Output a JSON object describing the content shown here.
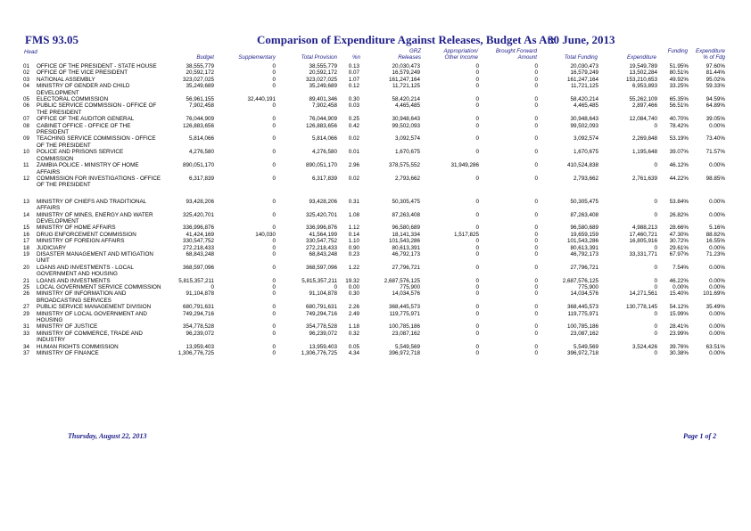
{
  "header": {
    "report_id": "FMS 93.05",
    "title": "Comparison of Expenditure Against Releases, Budget As At:",
    "as_at": "30 June, 2013"
  },
  "columns": {
    "head": "Head",
    "budget": "Budget",
    "supplementary": "Supplementary",
    "total_provision": "Total Provision",
    "pct": "%n",
    "grz_releases": "GRZ\nReleases",
    "appropriation": "Appropriation/\nOther Income",
    "brought_forward": "Brought Forward\nAmount",
    "total_funding": "Total Funding",
    "expenditure": "Expenditure",
    "funding_pct": "Funding",
    "expenditure_pct": "Expenditure\n% of Fdg"
  },
  "rows": [
    {
      "code": "01",
      "name": "OFFICE OF THE PRESIDENT - STATE HOUSE",
      "budget": "38,555,779",
      "supp": "0",
      "total": "38,555,779",
      "pct": "0.13",
      "grz": "20,030,473",
      "approp": "0",
      "bf": "0",
      "funding": "20,030,473",
      "exp": "19,549,789",
      "fpct": "51.95%",
      "epct": "97.60%"
    },
    {
      "code": "02",
      "name": "OFFICE OF THE VICE PRESIDENT",
      "budget": "20,592,172",
      "supp": "0",
      "total": "20,592,172",
      "pct": "0.07",
      "grz": "16,579,249",
      "approp": "0",
      "bf": "0",
      "funding": "16,579,249",
      "exp": "13,502,284",
      "fpct": "80.51%",
      "epct": "81.44%"
    },
    {
      "code": "03",
      "name": "NATIONAL ASSEMBLY",
      "budget": "323,027,025",
      "supp": "0",
      "total": "323,027,025",
      "pct": "1.07",
      "grz": "161,247,164",
      "approp": "0",
      "bf": "0",
      "funding": "161,247,164",
      "exp": "153,210,653",
      "fpct": "49.92%",
      "epct": "95.02%"
    },
    {
      "code": "04",
      "name": "MINISTRY OF GENDER AND CHILD DEVELOPMENT",
      "budget": "35,249,689",
      "supp": "0",
      "total": "35,249,689",
      "pct": "0.12",
      "grz": "11,721,125",
      "approp": "0",
      "bf": "0",
      "funding": "11,721,125",
      "exp": "6,953,893",
      "fpct": "33.25%",
      "epct": "59.33%"
    },
    {
      "code": "05",
      "name": "ELECTORAL COMMISSION",
      "budget": "56,961,155",
      "supp": "32,440,191",
      "total": "89,401,346",
      "pct": "0.30",
      "grz": "58,420,214",
      "approp": "0",
      "bf": "0",
      "funding": "58,420,214",
      "exp": "55,262,109",
      "fpct": "65.35%",
      "epct": "94.59%"
    },
    {
      "code": "06",
      "name": "PUBLIC SERVICE COMMISSION - OFFICE OF THE PRESIDENT",
      "budget": "7,902,458",
      "supp": "0",
      "total": "7,902,458",
      "pct": "0.03",
      "grz": "4,465,485",
      "approp": "0",
      "bf": "0",
      "funding": "4,465,485",
      "exp": "2,897,466",
      "fpct": "56.51%",
      "epct": "64.89%"
    },
    {
      "code": "07",
      "name": "OFFICE OF THE AUDITOR GENERAL",
      "budget": "76,044,909",
      "supp": "0",
      "total": "76,044,909",
      "pct": "0.25",
      "grz": "30,948,643",
      "approp": "0",
      "bf": "0",
      "funding": "30,948,643",
      "exp": "12,084,740",
      "fpct": "40.70%",
      "epct": "39.05%"
    },
    {
      "code": "08",
      "name": "CABINET OFFICE - OFFICE OF THE PRESIDENT",
      "budget": "126,883,656",
      "supp": "0",
      "total": "126,883,656",
      "pct": "0.42",
      "grz": "99,502,093",
      "approp": "0",
      "bf": "0",
      "funding": "99,502,093",
      "exp": "0",
      "fpct": "78.42%",
      "epct": "0.00%"
    },
    {
      "code": "09",
      "name": "TEACHING SERVICE COMMISSION - OFFICE OF THE PRESIDENT",
      "budget": "5,814,066",
      "supp": "0",
      "total": "5,814,066",
      "pct": "0.02",
      "grz": "3,092,574",
      "approp": "0",
      "bf": "0",
      "funding": "3,092,574",
      "exp": "2,269,848",
      "fpct": "53.19%",
      "epct": "73.40%"
    },
    {
      "code": "10",
      "name": "POLICE AND PRISONS SERVICE COMMISSION",
      "budget": "4,276,580",
      "supp": "0",
      "total": "4,276,580",
      "pct": "0.01",
      "grz": "1,670,675",
      "approp": "0",
      "bf": "0",
      "funding": "1,670,675",
      "exp": "1,195,648",
      "fpct": "39.07%",
      "epct": "71.57%"
    },
    {
      "code": "11",
      "name": "ZAMBIA POLICE - MINISTRY OF HOME AFFAIRS",
      "budget": "890,051,170",
      "supp": "0",
      "total": "890,051,170",
      "pct": "2.96",
      "grz": "378,575,552",
      "approp": "31,949,286",
      "bf": "0",
      "funding": "410,524,838",
      "exp": "0",
      "fpct": "46.12%",
      "epct": "0.00%"
    },
    {
      "code": "12",
      "name": "COMMISSION FOR INVESTIGATIONS - OFFICE OF THE PRESIDENT",
      "budget": "6,317,839",
      "supp": "0",
      "total": "6,317,839",
      "pct": "0.02",
      "grz": "2,793,662",
      "approp": "0",
      "bf": "0",
      "funding": "2,793,662",
      "exp": "2,761,639",
      "fpct": "44.22%",
      "epct": "98.85%"
    },
    {
      "code": "13",
      "name": "MINISTRY OF CHIEFS AND TRADITIONAL AFFAIRS",
      "budget": "93,428,206",
      "supp": "0",
      "total": "93,428,206",
      "pct": "0.31",
      "grz": "50,305,475",
      "approp": "0",
      "bf": "0",
      "funding": "50,305,475",
      "exp": "0",
      "fpct": "53.84%",
      "epct": "0.00%"
    },
    {
      "code": "14",
      "name": "MINISTRY OF MINES, ENERGY AND WATER DEVELOPMENT",
      "budget": "325,420,701",
      "supp": "0",
      "total": "325,420,701",
      "pct": "1.08",
      "grz": "87,263,408",
      "approp": "0",
      "bf": "0",
      "funding": "87,263,408",
      "exp": "0",
      "fpct": "26.82%",
      "epct": "0.00%"
    },
    {
      "code": "15",
      "name": "MINISTRY OF HOME AFFAIRS",
      "budget": "336,996,876",
      "supp": "0",
      "total": "336,996,876",
      "pct": "1.12",
      "grz": "96,580,689",
      "approp": "0",
      "bf": "0",
      "funding": "96,580,689",
      "exp": "4,988,213",
      "fpct": "28.66%",
      "epct": "5.16%"
    },
    {
      "code": "16",
      "name": "DRUG ENFORCEMENT COMMISSION",
      "budget": "41,424,169",
      "supp": "140,030",
      "total": "41,564,199",
      "pct": "0.14",
      "grz": "18,141,334",
      "approp": "1,517,825",
      "bf": "0",
      "funding": "19,659,159",
      "exp": "17,460,721",
      "fpct": "47.30%",
      "epct": "88.82%"
    },
    {
      "code": "17",
      "name": "MINISTRY OF FOREIGN AFFAIRS",
      "budget": "330,547,752",
      "supp": "0",
      "total": "330,547,752",
      "pct": "1.10",
      "grz": "101,543,286",
      "approp": "0",
      "bf": "0",
      "funding": "101,543,286",
      "exp": "16,805,916",
      "fpct": "30.72%",
      "epct": "16.55%"
    },
    {
      "code": "18",
      "name": "JUDICIARY",
      "budget": "272,218,433",
      "supp": "0",
      "total": "272,218,433",
      "pct": "0.90",
      "grz": "80,613,391",
      "approp": "0",
      "bf": "0",
      "funding": "80,613,391",
      "exp": "0",
      "fpct": "29.61%",
      "epct": "0.00%"
    },
    {
      "code": "19",
      "name": "DISASTER MANAGEMENT AND MITIGATION UNIT",
      "budget": "68,843,248",
      "supp": "0",
      "total": "68,843,248",
      "pct": "0.23",
      "grz": "46,792,173",
      "approp": "0",
      "bf": "0",
      "funding": "46,792,173",
      "exp": "33,331,771",
      "fpct": "67.97%",
      "epct": "71.23%"
    },
    {
      "code": "20",
      "name": "LOANS AND INVESTMENTS - LOCAL GOVERNMENT AND HOUSING",
      "budget": "368,597,096",
      "supp": "0",
      "total": "368,597,096",
      "pct": "1.22",
      "grz": "27,796,721",
      "approp": "0",
      "bf": "0",
      "funding": "27,796,721",
      "exp": "0",
      "fpct": "7.54%",
      "epct": "0.00%"
    },
    {
      "code": "21",
      "name": "LOANS AND INVESTMENTS",
      "budget": "5,815,357,211",
      "supp": "0",
      "total": "5,815,357,211",
      "pct": "19.32",
      "grz": "2,687,576,125",
      "approp": "0",
      "bf": "0",
      "funding": "2,687,576,125",
      "exp": "0",
      "fpct": "46.22%",
      "epct": "0.00%"
    },
    {
      "code": "25",
      "name": "LOCAL GOVERNMENT SERVICE COMMISSION",
      "budget": "0",
      "supp": "0",
      "total": "0",
      "pct": "0.00",
      "grz": "775,900",
      "approp": "0",
      "bf": "0",
      "funding": "775,900",
      "exp": "0",
      "fpct": "0.00%",
      "epct": "0.00%"
    },
    {
      "code": "26",
      "name": "MINISTRY OF INFORMATION AND BROADCASTING SERVICES",
      "budget": "91,104,878",
      "supp": "0",
      "total": "91,104,878",
      "pct": "0.30",
      "grz": "14,034,576",
      "approp": "0",
      "bf": "0",
      "funding": "14,034,576",
      "exp": "14,271,561",
      "fpct": "15.40%",
      "epct": "101.69%"
    },
    {
      "code": "27",
      "name": "PUBLIC SERVICE MANAGEMENT DIVISION",
      "budget": "680,791,631",
      "supp": "0",
      "total": "680,791,631",
      "pct": "2.26",
      "grz": "368,445,573",
      "approp": "0",
      "bf": "0",
      "funding": "368,445,573",
      "exp": "130,778,145",
      "fpct": "54.12%",
      "epct": "35.49%"
    },
    {
      "code": "29",
      "name": "MINISTRY OF LOCAL GOVERNMENT AND HOUSING",
      "budget": "749,294,716",
      "supp": "0",
      "total": "749,294,716",
      "pct": "2.49",
      "grz": "119,775,971",
      "approp": "0",
      "bf": "0",
      "funding": "119,775,971",
      "exp": "0",
      "fpct": "15.99%",
      "epct": "0.00%"
    },
    {
      "code": "31",
      "name": "MINISTRY OF JUSTICE",
      "budget": "354,778,528",
      "supp": "0",
      "total": "354,778,528",
      "pct": "1.18",
      "grz": "100,785,186",
      "approp": "0",
      "bf": "0",
      "funding": "100,785,186",
      "exp": "0",
      "fpct": "28.41%",
      "epct": "0.00%"
    },
    {
      "code": "33",
      "name": "MINISTRY OF COMMERCE, TRADE AND INDUSTRY",
      "budget": "96,239,072",
      "supp": "0",
      "total": "96,239,072",
      "pct": "0.32",
      "grz": "23,087,162",
      "approp": "0",
      "bf": "0",
      "funding": "23,087,162",
      "exp": "0",
      "fpct": "23.99%",
      "epct": "0.00%"
    },
    {
      "code": "34",
      "name": "HUMAN RIGHTS COMMISSION",
      "budget": "13,959,403",
      "supp": "0",
      "total": "13,959,403",
      "pct": "0.05",
      "grz": "5,549,569",
      "approp": "0",
      "bf": "0",
      "funding": "5,549,569",
      "exp": "3,524,426",
      "fpct": "39.76%",
      "epct": "63.51%"
    },
    {
      "code": "37",
      "name": "MINISTRY OF FINANCE",
      "budget": "1,306,776,725",
      "supp": "0",
      "total": "1,306,776,725",
      "pct": "4.34",
      "grz": "396,972,718",
      "approp": "0",
      "bf": "0",
      "funding": "396,972,718",
      "exp": "0",
      "fpct": "30.38%",
      "epct": "0.00%"
    }
  ],
  "footer": {
    "printed_on": "Thursday, August 22, 2013",
    "page": "Page 1 of 2"
  }
}
